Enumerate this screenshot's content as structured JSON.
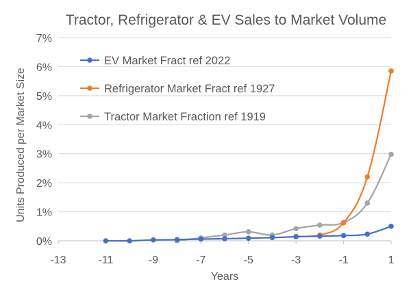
{
  "chart_data": {
    "type": "line",
    "title": "Tractor, Refrigerator & EV Sales to Market Volume",
    "xlabel": "Years",
    "ylabel": "Units Produced per Market Size",
    "xlim": [
      -13,
      1
    ],
    "ylim": [
      0,
      7
    ],
    "x_ticks": [
      "-13",
      "-11",
      "-9",
      "-7",
      "-5",
      "-3",
      "-1",
      "1"
    ],
    "y_ticks": [
      "0%",
      "1%",
      "2%",
      "3%",
      "4%",
      "5%",
      "6%",
      "7%"
    ],
    "grid": "horizontal",
    "legend_position": "top-left",
    "series": [
      {
        "name": "EV Market Fract ref 2022",
        "color": "#4472C4",
        "x": [
          -11,
          -10,
          -9,
          -8,
          -7,
          -6,
          -5,
          -4,
          -3,
          -2,
          -1,
          0,
          1
        ],
        "y": [
          0.0,
          0.0,
          0.03,
          0.04,
          0.06,
          0.07,
          0.09,
          0.11,
          0.14,
          0.16,
          0.18,
          0.23,
          0.5
        ]
      },
      {
        "name": "Refrigerator Market Fract ref 1927",
        "color": "#ED7D31",
        "x": [
          -3,
          -2,
          -1,
          0,
          1
        ],
        "y": [
          0.15,
          0.2,
          0.62,
          2.2,
          5.85
        ]
      },
      {
        "name": "Tractor Market Fraction ref 1919",
        "color": "#A5A5A5",
        "x": [
          -8,
          -7,
          -6,
          -5,
          -4,
          -3,
          -2,
          -1,
          0,
          1
        ],
        "y": [
          0.0,
          0.1,
          0.2,
          0.31,
          0.2,
          0.42,
          0.54,
          0.63,
          1.3,
          2.98
        ]
      }
    ]
  }
}
